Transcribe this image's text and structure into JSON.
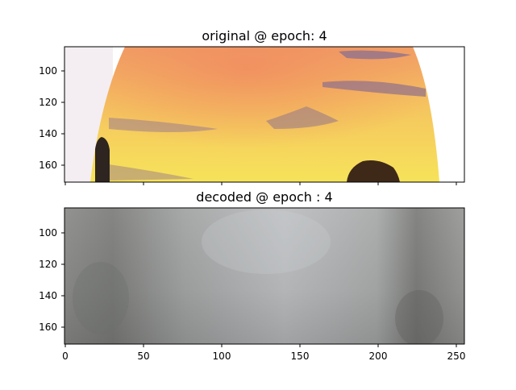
{
  "figure": {
    "panels": [
      {
        "title": "original @ epoch: 4",
        "image_description": "sunset sky with orange-to-yellow gradient, purple cloud streaks and dark silhouettes, cropped by a rounded boundary",
        "yticks": [
          "100",
          "120",
          "140",
          "160"
        ],
        "xticks_visible": false
      },
      {
        "title": "decoded @ epoch : 4",
        "image_description": "blurry grayscale reconstruction with darker regions near left and right",
        "yticks": [
          "100",
          "120",
          "140",
          "160"
        ],
        "xticks": [
          "0",
          "50",
          "100",
          "150",
          "200",
          "250"
        ],
        "xticks_visible": true
      }
    ]
  },
  "colors": {
    "sky_top": "#f2a562",
    "sky_bottom": "#f4e060",
    "cloud": "#8a6a8a",
    "decoded_mid": "#b3b5b6",
    "decoded_dark": "#7d7e7c"
  }
}
